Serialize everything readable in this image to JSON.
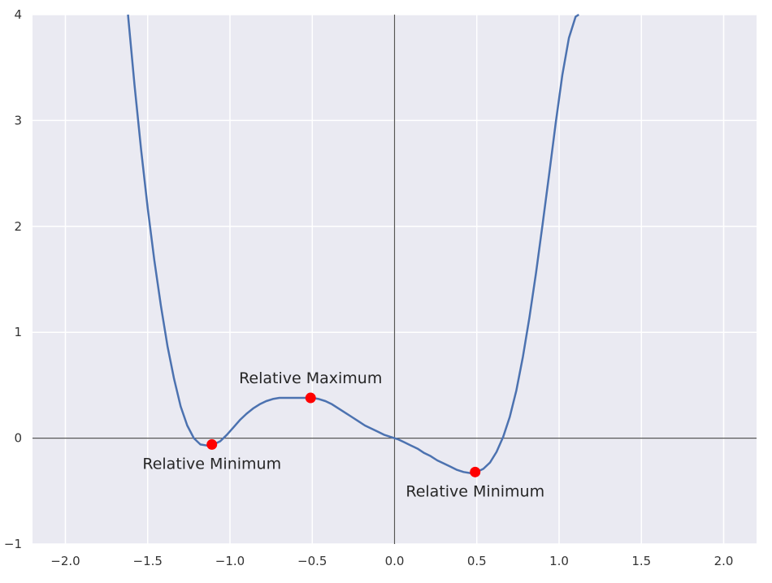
{
  "chart_data": {
    "type": "line",
    "title": "",
    "xlabel": "",
    "ylabel": "",
    "xlim": [
      -2.2,
      2.2
    ],
    "ylim": [
      -1,
      4
    ],
    "grid": true,
    "x_ticks": [
      -2.0,
      -1.5,
      -1.0,
      -0.5,
      0.0,
      0.5,
      1.0,
      1.5,
      2.0
    ],
    "x_tick_labels": [
      "−2.0",
      "−1.5",
      "−1.0",
      "−0.5",
      "0.0",
      "0.5",
      "1.0",
      "1.5",
      "2.0"
    ],
    "y_ticks": [
      -1,
      0,
      1,
      2,
      3,
      4
    ],
    "y_tick_labels": [
      "−1",
      "0",
      "1",
      "2",
      "3",
      "4"
    ],
    "series": [
      {
        "color": "#4c72b0",
        "x": [
          -1.62,
          -1.58,
          -1.54,
          -1.5,
          -1.46,
          -1.42,
          -1.38,
          -1.34,
          -1.3,
          -1.26,
          -1.22,
          -1.18,
          -1.14,
          -1.1,
          -1.06,
          -1.02,
          -0.98,
          -0.94,
          -0.9,
          -0.86,
          -0.82,
          -0.78,
          -0.74,
          -0.7,
          -0.66,
          -0.62,
          -0.58,
          -0.54,
          -0.5,
          -0.46,
          -0.42,
          -0.38,
          -0.34,
          -0.3,
          -0.26,
          -0.22,
          -0.18,
          -0.14,
          -0.1,
          -0.06,
          -0.02,
          0.02,
          0.06,
          0.1,
          0.14,
          0.18,
          0.22,
          0.26,
          0.3,
          0.34,
          0.38,
          0.42,
          0.46,
          0.5,
          0.54,
          0.58,
          0.62,
          0.66,
          0.7,
          0.74,
          0.78,
          0.82,
          0.86,
          0.9,
          0.94,
          0.98,
          1.02,
          1.06,
          1.1,
          1.12
        ],
        "y": [
          4.0,
          3.33,
          2.72,
          2.17,
          1.68,
          1.25,
          0.87,
          0.56,
          0.3,
          0.12,
          0.0,
          -0.06,
          -0.07,
          -0.06,
          -0.03,
          0.03,
          0.1,
          0.17,
          0.23,
          0.28,
          0.32,
          0.35,
          0.37,
          0.38,
          0.38,
          0.38,
          0.38,
          0.38,
          0.38,
          0.37,
          0.35,
          0.32,
          0.28,
          0.24,
          0.2,
          0.16,
          0.12,
          0.09,
          0.06,
          0.03,
          0.01,
          -0.01,
          -0.04,
          -0.07,
          -0.1,
          -0.14,
          -0.17,
          -0.21,
          -0.24,
          -0.27,
          -0.3,
          -0.32,
          -0.33,
          -0.32,
          -0.29,
          -0.23,
          -0.13,
          0.01,
          0.2,
          0.45,
          0.77,
          1.14,
          1.56,
          2.02,
          2.5,
          2.98,
          3.43,
          3.78,
          3.98,
          4.0
        ]
      }
    ],
    "points": [
      {
        "x": -1.11,
        "y": -0.06,
        "label": "Relative Minimum",
        "label_pos": "below",
        "color": "#ff0000"
      },
      {
        "x": -0.51,
        "y": 0.38,
        "label": "Relative Maximum",
        "label_pos": "above",
        "color": "#ff0000"
      },
      {
        "x": 0.49,
        "y": -0.32,
        "label": "Relative Minimum",
        "label_pos": "below",
        "color": "#ff0000"
      }
    ],
    "colors": {
      "plot_background": "#eaeaf2",
      "grid": "#ffffff",
      "zero_axes": "#555555"
    }
  }
}
